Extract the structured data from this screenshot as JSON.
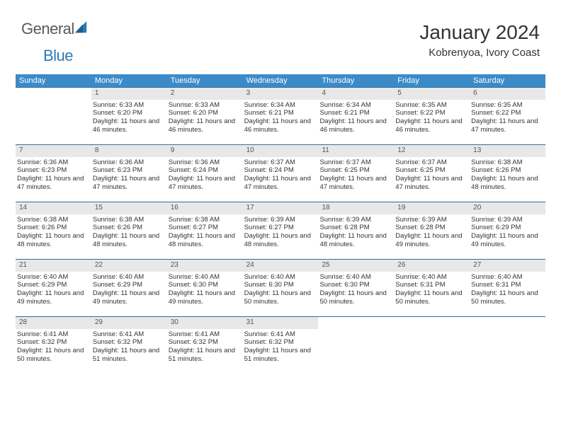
{
  "brand": {
    "part1": "General",
    "part2": "Blue",
    "sail_color": "#2a7ab8",
    "text1_color": "#58595b"
  },
  "header": {
    "month": "January 2024",
    "location": "Kobrenyoa, Ivory Coast"
  },
  "theme": {
    "header_bg": "#3b8bc9",
    "header_fg": "#ffffff",
    "week_border": "#2a6fa5",
    "daynum_bg": "#e8e8e8",
    "daynum_fg": "#555555",
    "body_fg": "#333333"
  },
  "day_names": [
    "Sunday",
    "Monday",
    "Tuesday",
    "Wednesday",
    "Thursday",
    "Friday",
    "Saturday"
  ],
  "first_weekday": 1,
  "num_days": 31,
  "days": {
    "1": {
      "sunrise": "6:33 AM",
      "sunset": "6:20 PM",
      "daylight": "11 hours and 46 minutes."
    },
    "2": {
      "sunrise": "6:33 AM",
      "sunset": "6:20 PM",
      "daylight": "11 hours and 46 minutes."
    },
    "3": {
      "sunrise": "6:34 AM",
      "sunset": "6:21 PM",
      "daylight": "11 hours and 46 minutes."
    },
    "4": {
      "sunrise": "6:34 AM",
      "sunset": "6:21 PM",
      "daylight": "11 hours and 46 minutes."
    },
    "5": {
      "sunrise": "6:35 AM",
      "sunset": "6:22 PM",
      "daylight": "11 hours and 46 minutes."
    },
    "6": {
      "sunrise": "6:35 AM",
      "sunset": "6:22 PM",
      "daylight": "11 hours and 47 minutes."
    },
    "7": {
      "sunrise": "6:36 AM",
      "sunset": "6:23 PM",
      "daylight": "11 hours and 47 minutes."
    },
    "8": {
      "sunrise": "6:36 AM",
      "sunset": "6:23 PM",
      "daylight": "11 hours and 47 minutes."
    },
    "9": {
      "sunrise": "6:36 AM",
      "sunset": "6:24 PM",
      "daylight": "11 hours and 47 minutes."
    },
    "10": {
      "sunrise": "6:37 AM",
      "sunset": "6:24 PM",
      "daylight": "11 hours and 47 minutes."
    },
    "11": {
      "sunrise": "6:37 AM",
      "sunset": "6:25 PM",
      "daylight": "11 hours and 47 minutes."
    },
    "12": {
      "sunrise": "6:37 AM",
      "sunset": "6:25 PM",
      "daylight": "11 hours and 47 minutes."
    },
    "13": {
      "sunrise": "6:38 AM",
      "sunset": "6:26 PM",
      "daylight": "11 hours and 48 minutes."
    },
    "14": {
      "sunrise": "6:38 AM",
      "sunset": "6:26 PM",
      "daylight": "11 hours and 48 minutes."
    },
    "15": {
      "sunrise": "6:38 AM",
      "sunset": "6:26 PM",
      "daylight": "11 hours and 48 minutes."
    },
    "16": {
      "sunrise": "6:38 AM",
      "sunset": "6:27 PM",
      "daylight": "11 hours and 48 minutes."
    },
    "17": {
      "sunrise": "6:39 AM",
      "sunset": "6:27 PM",
      "daylight": "11 hours and 48 minutes."
    },
    "18": {
      "sunrise": "6:39 AM",
      "sunset": "6:28 PM",
      "daylight": "11 hours and 48 minutes."
    },
    "19": {
      "sunrise": "6:39 AM",
      "sunset": "6:28 PM",
      "daylight": "11 hours and 49 minutes."
    },
    "20": {
      "sunrise": "6:39 AM",
      "sunset": "6:29 PM",
      "daylight": "11 hours and 49 minutes."
    },
    "21": {
      "sunrise": "6:40 AM",
      "sunset": "6:29 PM",
      "daylight": "11 hours and 49 minutes."
    },
    "22": {
      "sunrise": "6:40 AM",
      "sunset": "6:29 PM",
      "daylight": "11 hours and 49 minutes."
    },
    "23": {
      "sunrise": "6:40 AM",
      "sunset": "6:30 PM",
      "daylight": "11 hours and 49 minutes."
    },
    "24": {
      "sunrise": "6:40 AM",
      "sunset": "6:30 PM",
      "daylight": "11 hours and 50 minutes."
    },
    "25": {
      "sunrise": "6:40 AM",
      "sunset": "6:30 PM",
      "daylight": "11 hours and 50 minutes."
    },
    "26": {
      "sunrise": "6:40 AM",
      "sunset": "6:31 PM",
      "daylight": "11 hours and 50 minutes."
    },
    "27": {
      "sunrise": "6:40 AM",
      "sunset": "6:31 PM",
      "daylight": "11 hours and 50 minutes."
    },
    "28": {
      "sunrise": "6:41 AM",
      "sunset": "6:32 PM",
      "daylight": "11 hours and 50 minutes."
    },
    "29": {
      "sunrise": "6:41 AM",
      "sunset": "6:32 PM",
      "daylight": "11 hours and 51 minutes."
    },
    "30": {
      "sunrise": "6:41 AM",
      "sunset": "6:32 PM",
      "daylight": "11 hours and 51 minutes."
    },
    "31": {
      "sunrise": "6:41 AM",
      "sunset": "6:32 PM",
      "daylight": "11 hours and 51 minutes."
    }
  },
  "labels": {
    "sunrise": "Sunrise:",
    "sunset": "Sunset:",
    "daylight": "Daylight:"
  }
}
